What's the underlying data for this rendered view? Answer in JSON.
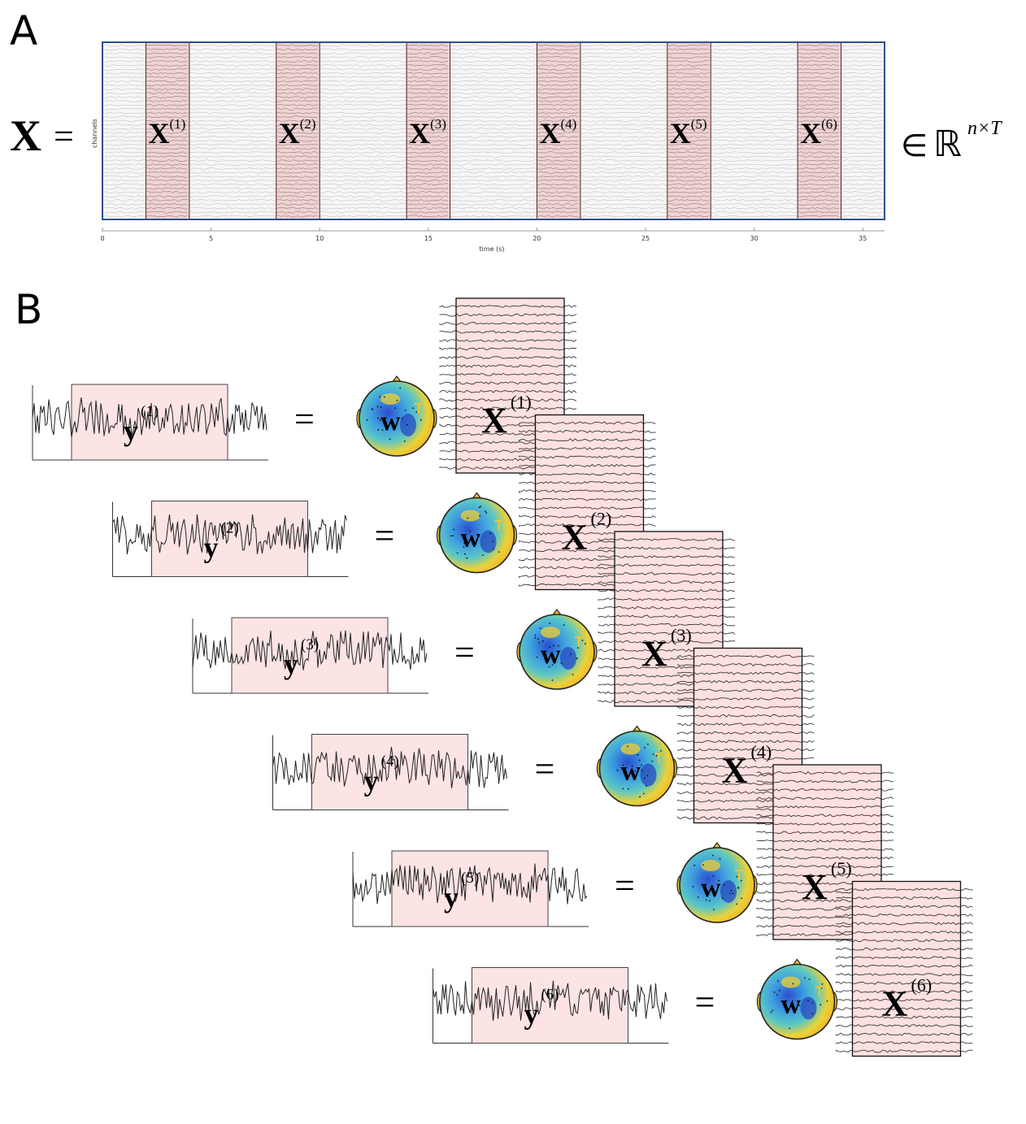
{
  "panel_a": {
    "letter": "A",
    "lhs": "X",
    "equals": "=",
    "ylabel": "channels",
    "xlabel": "time (s)",
    "x_ticks": [
      "0",
      "5",
      "10",
      "15",
      "20",
      "25",
      "30",
      "35"
    ],
    "belongs": "∈",
    "space": "ℝ",
    "space_exp": "n×T",
    "segment_base": "X",
    "segment_sups": [
      "(1)",
      "(2)",
      "(3)",
      "(4)",
      "(5)",
      "(6)"
    ],
    "segment_windows_s": [
      [
        2,
        4
      ],
      [
        8,
        10
      ],
      [
        14,
        16
      ],
      [
        20,
        22
      ],
      [
        26,
        28
      ],
      [
        32,
        34
      ]
    ],
    "time_range_s": [
      0,
      36
    ]
  },
  "panel_b": {
    "letter": "B",
    "output_base": "y",
    "weight_symbol": "w",
    "equals": "=",
    "segment_base": "X",
    "rows": [
      {
        "sup": "(1)"
      },
      {
        "sup": "(2)"
      },
      {
        "sup": "(3)"
      },
      {
        "sup": "(4)"
      },
      {
        "sup": "(5)"
      },
      {
        "sup": "(6)"
      }
    ]
  },
  "colors": {
    "frame_blue": "#2e4f8c",
    "segment_fill": "#e8c8c8",
    "segment_border": "#5a2020",
    "output_box_fill": "#fde4e4",
    "matrix_fill": "#fde0e0",
    "trace": "#222222",
    "topo_yellow": "#f5d43a",
    "topo_blue": "#2f6ad6",
    "topo_cyan": "#4fc2d9"
  }
}
